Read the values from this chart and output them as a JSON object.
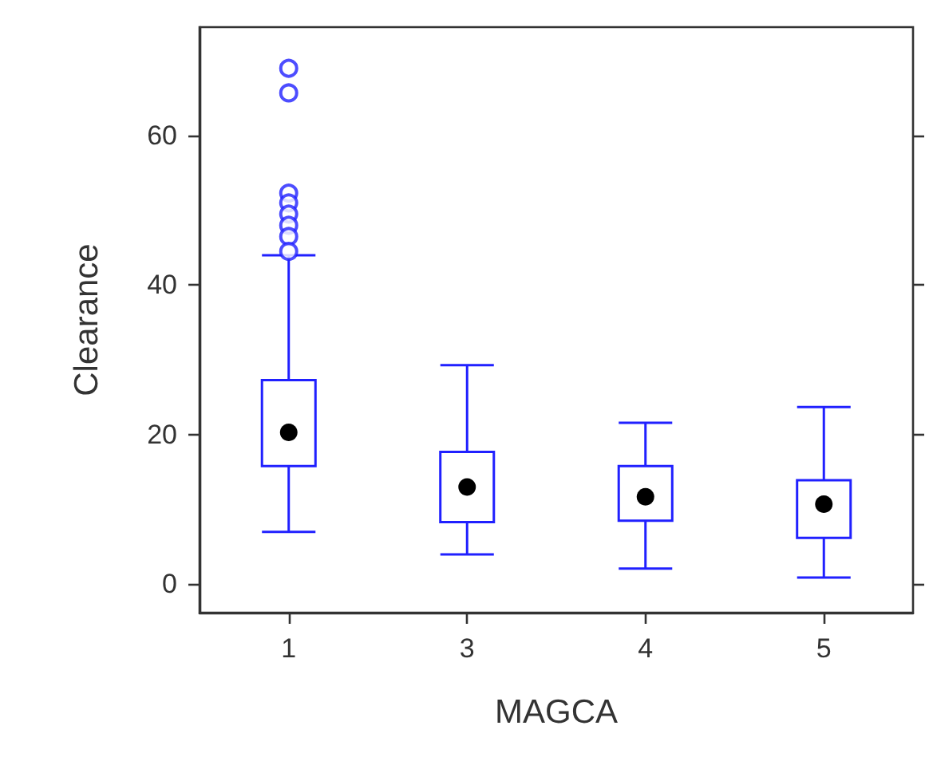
{
  "chart_data": {
    "type": "box",
    "xlabel": "MAGCA",
    "ylabel": "Clearance",
    "categories": [
      "1",
      "3",
      "4",
      "5"
    ],
    "ylim": [
      -3.8,
      74.5
    ],
    "yticks": [
      0,
      20,
      40,
      60
    ],
    "grid": false,
    "series": [
      {
        "color": "#2020ff",
        "boxes": [
          {
            "low": 7.0,
            "q1": 15.8,
            "median": 20.3,
            "q3": 27.3,
            "high": 44,
            "outliers": [
              69,
              65.7,
              52.3,
              51,
              49.5,
              48,
              46.5,
              44.5
            ]
          },
          {
            "low": 4,
            "q1": 8.3,
            "median": 13,
            "q3": 17.7,
            "high": 29.3
          },
          {
            "low": 2.1,
            "q1": 8.5,
            "median": 11.7,
            "q3": 15.8,
            "high": 21.6
          },
          {
            "low": 0.9,
            "q1": 6.2,
            "median": 10.7,
            "q3": 13.9,
            "high": 23.7
          }
        ]
      }
    ]
  }
}
